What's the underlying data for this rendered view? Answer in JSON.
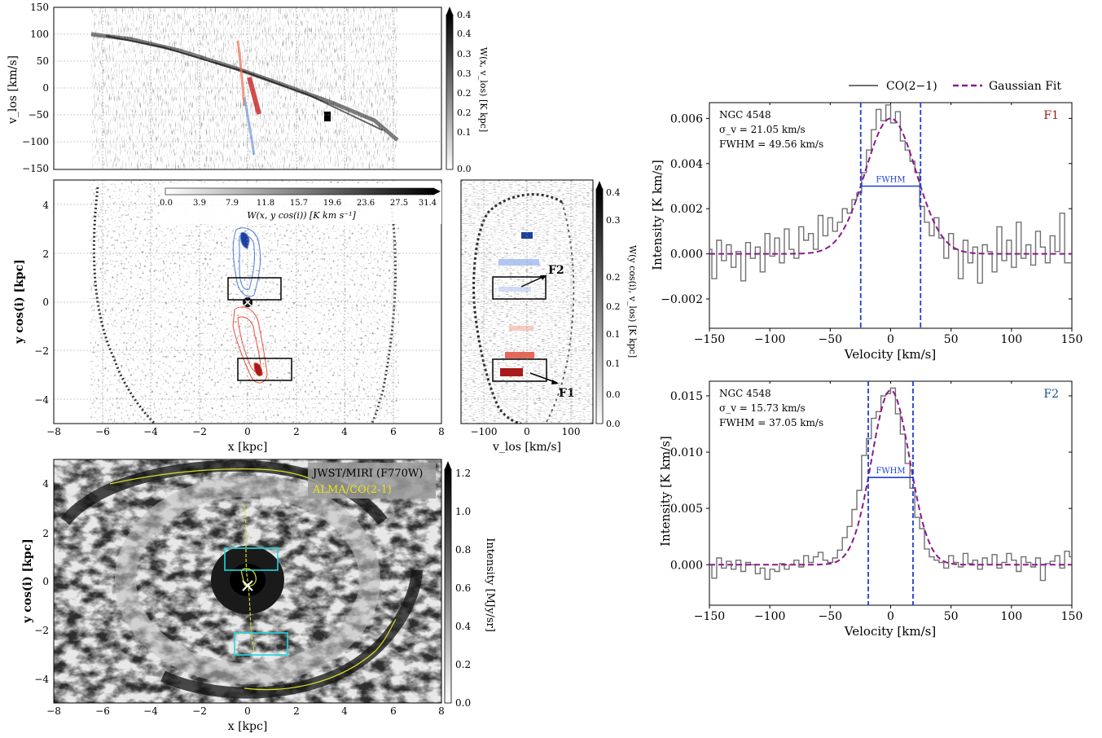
{
  "figure": {
    "legend": {
      "co_label": "CO(2−1)",
      "fit_label": "Gaussian Fit"
    },
    "colors": {
      "blue": "#1f3fd6",
      "purple": "#8a1a8a",
      "data_gray": "#707070",
      "cyan": "#22d6e0",
      "yellow": "#d9df1f",
      "f1": "#9b1b1b",
      "f2": "#1f4d8a",
      "red_contour": "#e0503c",
      "blue_contour": "#4d7ed8"
    }
  },
  "chart_data": [
    {
      "id": "pv-major",
      "type": "heatmap",
      "ylabel": "v_los [km/s]",
      "ylim": [
        -150,
        150
      ],
      "yticks": [
        "150",
        "100",
        "50",
        "0",
        "−50",
        "−100",
        "−150"
      ],
      "colorbar": {
        "label": "W(x, v_los) [K kpc]",
        "ticks": [
          "0.0",
          "0.1",
          "0.2",
          "0.2",
          "0.3",
          "0.3",
          "0.4",
          "0.4"
        ],
        "range": [
          0.0,
          0.4
        ]
      }
    },
    {
      "id": "map-face",
      "type": "heatmap",
      "xlabel": "x [kpc]",
      "ylabel": "y cos(i) [kpc]",
      "xlim": [
        -8,
        8
      ],
      "ylim": [
        -5,
        5
      ],
      "xticks": [
        "−8",
        "−6",
        "−4",
        "−2",
        "0",
        "2",
        "4",
        "6",
        "8"
      ],
      "yticks": [
        "4",
        "2",
        "0",
        "−2",
        "−4"
      ],
      "colorbar": {
        "label": "W(x, y cos(i)) [K km s⁻¹]",
        "ticks": [
          "0.0",
          "3.9",
          "7.9",
          "11.8",
          "15.7",
          "19.6",
          "23.6",
          "27.5",
          "31.4"
        ]
      }
    },
    {
      "id": "pv-minor",
      "type": "heatmap",
      "xlabel": "v_los [km/s]",
      "xlim": [
        -150,
        150
      ],
      "xticks": [
        "−100",
        "0",
        "100"
      ],
      "annotations": [
        "F2",
        "F1"
      ],
      "colorbar": {
        "label": "W(y cos(i), v_los) [K kpc]",
        "ticks": [
          "0.4",
          "0.3",
          "0.2",
          "0.2",
          "0.1",
          "0.1",
          "0.0",
          "0.0"
        ]
      }
    },
    {
      "id": "jwst",
      "type": "heatmap",
      "xlabel": "x [kpc]",
      "ylabel": "y cos(i) [kpc]",
      "xticks": [
        "−8",
        "−6",
        "−4",
        "−2",
        "0",
        "2",
        "4",
        "6",
        "8"
      ],
      "yticks": [
        "4",
        "2",
        "0",
        "−2",
        "−4"
      ],
      "legend": [
        "JWST/MIRI (F770W)",
        "ALMA/CO(2-1)"
      ],
      "colorbar": {
        "label": "Intensity [MJy/sr]",
        "ticks": [
          "1.2",
          "1.0",
          "0.8",
          "0.6",
          "0.4",
          "0.2",
          "0.0"
        ],
        "range": [
          0.0,
          1.2
        ]
      }
    },
    {
      "id": "spectrum-f1",
      "type": "line",
      "xlabel": "Velocity [km/s]",
      "ylabel": "Intensity [K km/s]",
      "xlim": [
        -150,
        150
      ],
      "ylim": [
        -0.0033,
        0.0067
      ],
      "xticks": [
        "−150",
        "−100",
        "−50",
        "0",
        "50",
        "100",
        "150"
      ],
      "yticks": [
        "0.006",
        "0.004",
        "0.002",
        "0.000",
        "−0.002"
      ],
      "tag": "F1",
      "galaxy": "NGC 4548",
      "sigma_label": "σ_v = 21.05 km/s",
      "fwhm_text": "FWHM = 49.56 km/s",
      "fwhm_bar_label": "FWHM",
      "sigma": 21.05,
      "fwhm": 49.56,
      "amplitude": 0.006,
      "series": [
        {
          "name": "CO(2−1)",
          "x": [
            -150,
            -146,
            -142,
            -138,
            -134,
            -130,
            -126,
            -122,
            -118,
            -114,
            -110,
            -106,
            -102,
            -98,
            -94,
            -90,
            -86,
            -82,
            -78,
            -74,
            -70,
            -66,
            -62,
            -58,
            -54,
            -50,
            -46,
            -42,
            -38,
            -34,
            -30,
            -26,
            -22,
            -18,
            -14,
            -10,
            -6,
            -2,
            2,
            6,
            10,
            14,
            18,
            22,
            26,
            30,
            34,
            38,
            42,
            46,
            50,
            54,
            58,
            62,
            66,
            70,
            74,
            78,
            82,
            86,
            90,
            94,
            98,
            102,
            106,
            110,
            114,
            118,
            122,
            126,
            130,
            134,
            138,
            142,
            146,
            150
          ],
          "y": [
            0.0002,
            -0.0011,
            0.0006,
            -0.0003,
            0.0004,
            -0.0006,
            0.0001,
            -0.0012,
            0.0005,
            -0.0002,
            0.0003,
            -0.0008,
            0.0009,
            -0.0001,
            0.0007,
            -0.0004,
            0.0011,
            0.0002,
            -0.0002,
            0.0012,
            0.0006,
            0.0009,
            0.0002,
            0.0017,
            0.0008,
            0.0016,
            0.001,
            0.0014,
            0.002,
            0.0018,
            0.0024,
            0.0027,
            0.0036,
            0.0046,
            0.0055,
            0.0064,
            0.0059,
            0.0066,
            0.0058,
            0.0063,
            0.005,
            0.0046,
            0.0041,
            0.0036,
            0.0021,
            0.0014,
            0.0008,
            0.0016,
            0.0007,
            -0.0002,
            0.0009,
            0.0002,
            -0.0011,
            0.0006,
            -0.0004,
            0.0003,
            -0.0013,
            0.0004,
            0.0001,
            -0.0008,
            0.0012,
            -0.0003,
            0.0006,
            -0.0006,
            0.0014,
            -0.0002,
            0.0004,
            -0.0005,
            0.001,
            0.0003,
            -0.0004,
            0.0008,
            0.0001,
            0.0018,
            -0.0004,
            -0.0004
          ]
        },
        {
          "name": "Gaussian Fit"
        }
      ]
    },
    {
      "id": "spectrum-f2",
      "type": "line",
      "xlabel": "Velocity [km/s]",
      "ylabel": "Intensity [K km/s]",
      "xlim": [
        -150,
        150
      ],
      "ylim": [
        -0.0036,
        0.0163
      ],
      "xticks": [
        "−150",
        "−100",
        "−50",
        "0",
        "50",
        "100",
        "150"
      ],
      "yticks": [
        "0.015",
        "0.010",
        "0.005",
        "0.000"
      ],
      "tag": "F2",
      "galaxy": "NGC 4548",
      "sigma_label": "σ_v = 15.73 km/s",
      "fwhm_text": "FWHM = 37.05 km/s",
      "fwhm_bar_label": "FWHM",
      "sigma": 15.73,
      "fwhm": 37.05,
      "amplitude": 0.0155,
      "series": [
        {
          "name": "CO(2−1)",
          "x": [
            -150,
            -146,
            -142,
            -138,
            -134,
            -130,
            -126,
            -122,
            -118,
            -114,
            -110,
            -106,
            -102,
            -98,
            -94,
            -90,
            -86,
            -82,
            -78,
            -74,
            -70,
            -66,
            -62,
            -58,
            -54,
            -50,
            -46,
            -42,
            -38,
            -34,
            -30,
            -26,
            -22,
            -18,
            -14,
            -10,
            -6,
            -2,
            2,
            6,
            10,
            14,
            18,
            22,
            26,
            30,
            34,
            38,
            42,
            46,
            50,
            54,
            58,
            62,
            66,
            70,
            74,
            78,
            82,
            86,
            90,
            94,
            98,
            102,
            106,
            110,
            114,
            118,
            122,
            126,
            130,
            134,
            138,
            142,
            146,
            150
          ],
          "y": [
            0.0,
            -0.0012,
            0.0006,
            -0.0003,
            0.0003,
            -0.0004,
            0.0004,
            -0.0006,
            0.0002,
            0.0,
            -0.0008,
            -0.0003,
            -0.0013,
            -0.0004,
            -0.0006,
            0.0001,
            -0.0004,
            0.0,
            0.0004,
            -0.0002,
            0.0008,
            0.0002,
            0.0007,
            0.0011,
            0.0004,
            0.0002,
            0.0006,
            0.0013,
            0.0024,
            0.0034,
            0.0049,
            0.0066,
            0.0097,
            0.0112,
            0.013,
            0.0136,
            0.015,
            0.0152,
            0.0157,
            0.0134,
            0.0116,
            0.009,
            0.0068,
            0.0042,
            0.0032,
            0.0014,
            0.0007,
            0.0004,
            0.0002,
            -0.0003,
            0.0008,
            0.0002,
            -0.0002,
            0.001,
            0.0001,
            0.0004,
            -0.0004,
            0.0006,
            0.0,
            0.0009,
            -0.0003,
            0.0002,
            0.001,
            0.0004,
            -0.0006,
            0.0007,
            0.0002,
            -0.0002,
            0.0006,
            -0.0014,
            0.0001,
            0.0003,
            0.0008,
            -0.0003,
            0.0012,
            0.0007
          ]
        },
        {
          "name": "Gaussian Fit"
        }
      ]
    }
  ]
}
